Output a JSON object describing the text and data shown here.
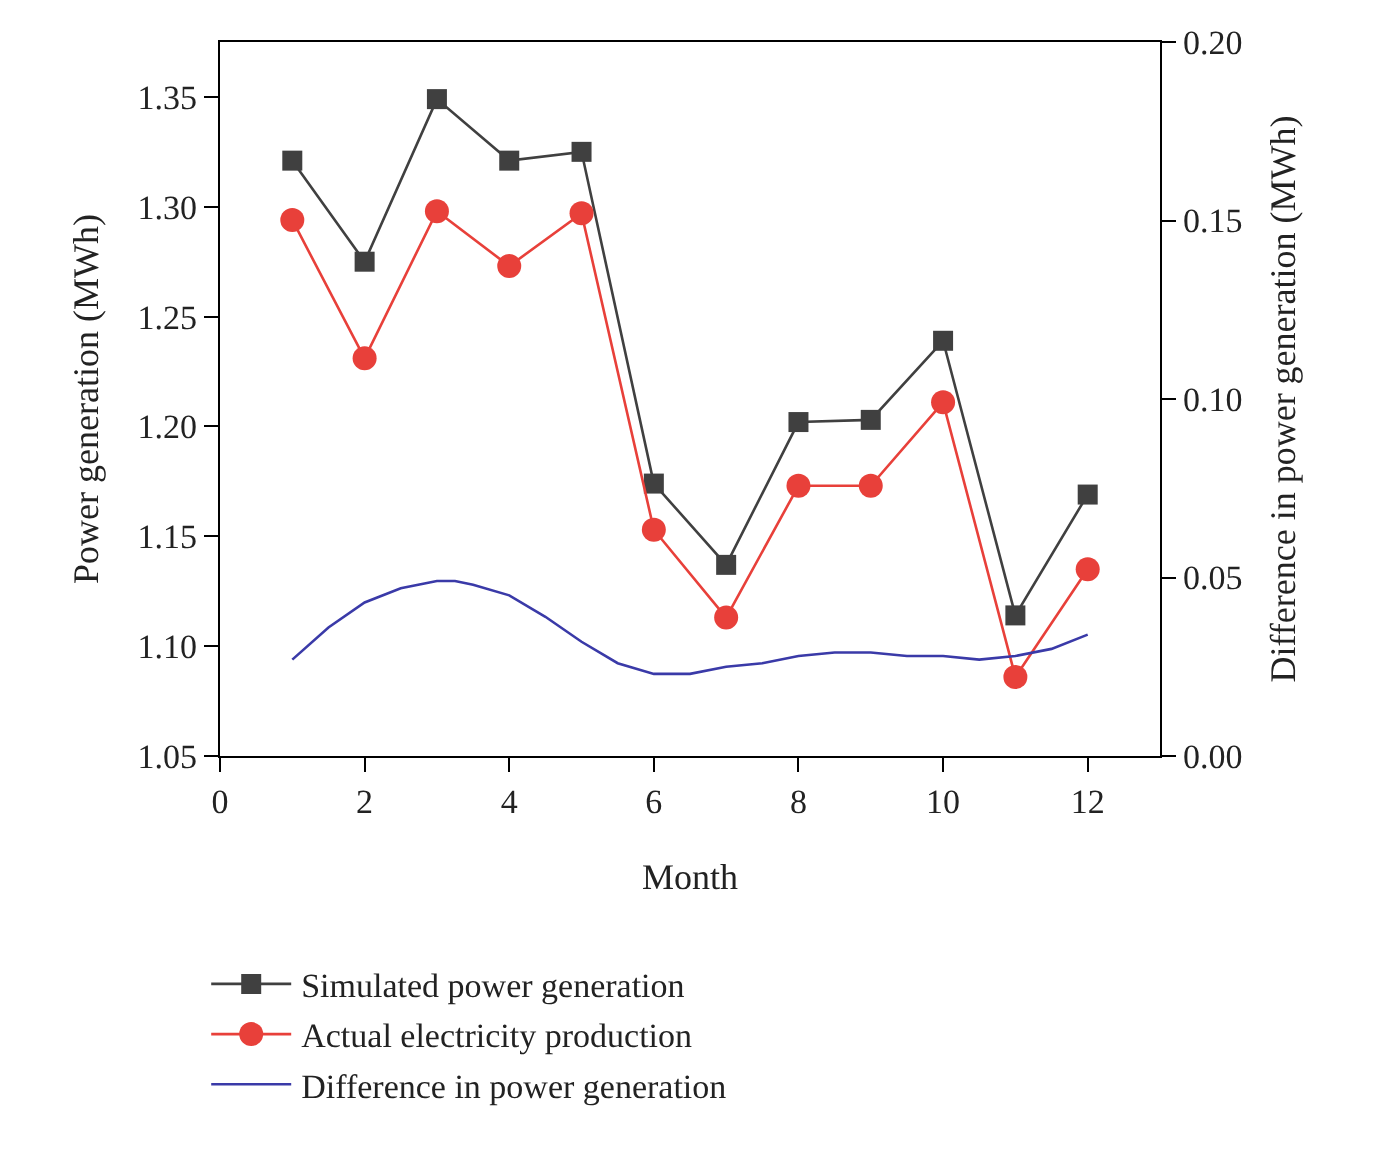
{
  "chart_data": {
    "type": "line",
    "xlabel": "Month",
    "ylabel": "Power generation (MWh)",
    "y2label": "Difference in power generation (MWh)",
    "xlim": [
      0,
      13
    ],
    "xticks": [
      0,
      2,
      4,
      6,
      8,
      10,
      12
    ],
    "ylim": [
      1.05,
      1.375
    ],
    "yticks": [
      1.05,
      {
        "value": 1.1,
        "label": "1.10"
      },
      1.15,
      {
        "value": 1.2,
        "label": "1.20"
      },
      1.25,
      {
        "value": 1.3,
        "label": "1.30"
      },
      1.35
    ],
    "y2lim": [
      0,
      0.2
    ],
    "y2ticks": [
      {
        "value": 0,
        "label": "0.00"
      },
      0.05,
      {
        "value": 0.1,
        "label": "0.10"
      },
      0.15,
      {
        "value": 0.2,
        "label": "0.20"
      }
    ],
    "grid": false,
    "legend": "bottom",
    "line_style": "solid",
    "series": [
      {
        "name": "Simulated power generation",
        "color": "#404040",
        "marker": "square",
        "x": [
          1,
          2,
          3,
          4,
          5,
          6,
          7,
          8,
          9,
          10,
          11,
          12
        ],
        "values": [
          1.321,
          1.275,
          1.349,
          1.321,
          1.325,
          1.174,
          1.137,
          1.202,
          1.203,
          1.239,
          1.114,
          1.169
        ]
      },
      {
        "name": "Actual electricity production",
        "color": "#e8403a",
        "marker": "circle",
        "x": [
          1,
          2,
          3,
          4,
          5,
          6,
          7,
          8,
          9,
          10,
          11,
          12
        ],
        "values": [
          1.294,
          1.231,
          1.298,
          1.273,
          1.297,
          1.153,
          1.113,
          1.173,
          1.173,
          1.211,
          1.086,
          1.135
        ]
      },
      {
        "name": "Difference in power generation",
        "color": "#3a3aa8",
        "marker": "none",
        "axis": "y2",
        "x": [
          1,
          1.5,
          2,
          2.5,
          3,
          3.25,
          3.5,
          4,
          4.5,
          5,
          5.5,
          6,
          6.5,
          7,
          7.5,
          8,
          8.5,
          9,
          9.5,
          10,
          10.5,
          11,
          11.5,
          12
        ],
        "values": [
          0.027,
          0.036,
          0.043,
          0.047,
          0.049,
          0.049,
          0.048,
          0.045,
          0.039,
          0.032,
          0.026,
          0.023,
          0.023,
          0.025,
          0.026,
          0.028,
          0.029,
          0.029,
          0.028,
          0.028,
          0.027,
          0.028,
          0.03,
          0.034
        ]
      }
    ]
  }
}
